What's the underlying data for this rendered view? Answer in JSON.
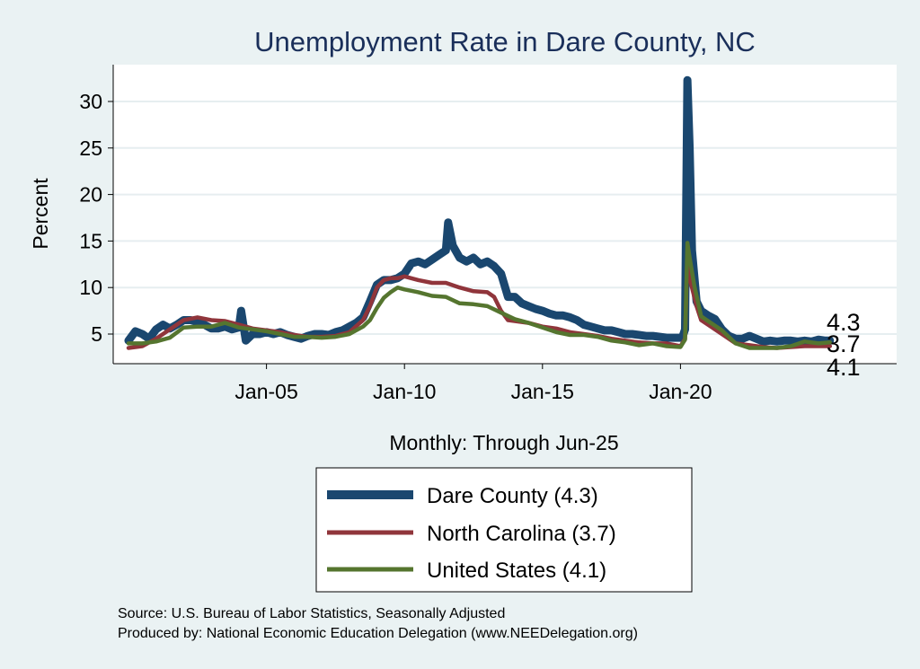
{
  "chart_data": {
    "type": "line",
    "title": "Unemployment Rate in Dare  County, NC",
    "xlabel": "Monthly: Through Jun-25",
    "ylabel": "Percent",
    "ylim": [
      2.5,
      33
    ],
    "yticks": [
      5,
      10,
      15,
      20,
      25,
      30
    ],
    "xlim": [
      "2000-01",
      "2025-12"
    ],
    "xticks": [
      {
        "x": "2005-01",
        "label": "Jan-05"
      },
      {
        "x": "2010-01",
        "label": "Jan-10"
      },
      {
        "x": "2015-01",
        "label": "Jan-15"
      },
      {
        "x": "2020-01",
        "label": "Jan-20"
      }
    ],
    "grid": true,
    "legend_position": "bottom",
    "series": [
      {
        "name": "Dare  County (4.3)",
        "color": "#1a476f",
        "end_value": "4.3",
        "points": [
          [
            "2000-01",
            4.3
          ],
          [
            "2000-04",
            5.3
          ],
          [
            "2000-07",
            5.0
          ],
          [
            "2000-10",
            4.5
          ],
          [
            "2001-01",
            5.5
          ],
          [
            "2001-04",
            6.0
          ],
          [
            "2001-07",
            5.6
          ],
          [
            "2001-10",
            6.0
          ],
          [
            "2002-01",
            6.5
          ],
          [
            "2002-04",
            6.5
          ],
          [
            "2002-07",
            6.3
          ],
          [
            "2002-10",
            6.0
          ],
          [
            "2003-01",
            5.6
          ],
          [
            "2003-04",
            5.6
          ],
          [
            "2003-07",
            5.8
          ],
          [
            "2003-10",
            5.5
          ],
          [
            "2004-01",
            5.7
          ],
          [
            "2004-02",
            7.5
          ],
          [
            "2004-04",
            4.3
          ],
          [
            "2004-07",
            5.0
          ],
          [
            "2004-10",
            5.0
          ],
          [
            "2005-01",
            5.2
          ],
          [
            "2005-04",
            5.0
          ],
          [
            "2005-07",
            5.2
          ],
          [
            "2005-10",
            4.9
          ],
          [
            "2006-01",
            4.7
          ],
          [
            "2006-04",
            4.5
          ],
          [
            "2006-07",
            4.8
          ],
          [
            "2006-10",
            5.0
          ],
          [
            "2007-01",
            5.0
          ],
          [
            "2007-04",
            4.9
          ],
          [
            "2007-07",
            5.2
          ],
          [
            "2007-10",
            5.4
          ],
          [
            "2008-01",
            5.8
          ],
          [
            "2008-04",
            6.2
          ],
          [
            "2008-07",
            6.8
          ],
          [
            "2008-10",
            8.5
          ],
          [
            "2009-01",
            10.3
          ],
          [
            "2009-04",
            10.8
          ],
          [
            "2009-07",
            10.8
          ],
          [
            "2009-10",
            11.0
          ],
          [
            "2010-01",
            11.5
          ],
          [
            "2010-04",
            12.6
          ],
          [
            "2010-07",
            12.8
          ],
          [
            "2010-10",
            12.5
          ],
          [
            "2011-01",
            13.0
          ],
          [
            "2011-04",
            13.5
          ],
          [
            "2011-07",
            14.0
          ],
          [
            "2011-08",
            17.0
          ],
          [
            "2011-10",
            14.5
          ],
          [
            "2012-01",
            13.2
          ],
          [
            "2012-04",
            12.8
          ],
          [
            "2012-07",
            13.2
          ],
          [
            "2012-10",
            12.5
          ],
          [
            "2013-01",
            12.8
          ],
          [
            "2013-04",
            12.3
          ],
          [
            "2013-07",
            11.5
          ],
          [
            "2013-10",
            9.0
          ],
          [
            "2014-01",
            9.0
          ],
          [
            "2014-04",
            8.3
          ],
          [
            "2014-07",
            8.0
          ],
          [
            "2014-10",
            7.7
          ],
          [
            "2015-01",
            7.5
          ],
          [
            "2015-04",
            7.2
          ],
          [
            "2015-07",
            7.0
          ],
          [
            "2015-10",
            7.0
          ],
          [
            "2016-01",
            6.8
          ],
          [
            "2016-04",
            6.5
          ],
          [
            "2016-07",
            6.0
          ],
          [
            "2016-10",
            5.8
          ],
          [
            "2017-01",
            5.6
          ],
          [
            "2017-04",
            5.4
          ],
          [
            "2017-07",
            5.4
          ],
          [
            "2017-10",
            5.2
          ],
          [
            "2018-01",
            5.0
          ],
          [
            "2018-04",
            5.0
          ],
          [
            "2018-07",
            4.9
          ],
          [
            "2018-10",
            4.8
          ],
          [
            "2019-01",
            4.8
          ],
          [
            "2019-04",
            4.7
          ],
          [
            "2019-07",
            4.6
          ],
          [
            "2019-10",
            4.6
          ],
          [
            "2020-01",
            4.6
          ],
          [
            "2020-02",
            4.8
          ],
          [
            "2020-03",
            5.5
          ],
          [
            "2020-04",
            32.3
          ],
          [
            "2020-05",
            25.0
          ],
          [
            "2020-06",
            14.0
          ],
          [
            "2020-08",
            8.5
          ],
          [
            "2020-10",
            7.5
          ],
          [
            "2021-01",
            7.0
          ],
          [
            "2021-04",
            6.6
          ],
          [
            "2021-07",
            5.5
          ],
          [
            "2021-10",
            4.8
          ],
          [
            "2022-01",
            4.5
          ],
          [
            "2022-04",
            4.5
          ],
          [
            "2022-07",
            4.8
          ],
          [
            "2022-10",
            4.5
          ],
          [
            "2023-01",
            4.2
          ],
          [
            "2023-04",
            4.3
          ],
          [
            "2023-07",
            4.2
          ],
          [
            "2023-10",
            4.3
          ],
          [
            "2024-01",
            4.3
          ],
          [
            "2024-04",
            4.2
          ],
          [
            "2024-07",
            4.3
          ],
          [
            "2024-10",
            4.2
          ],
          [
            "2025-01",
            4.4
          ],
          [
            "2025-04",
            4.3
          ],
          [
            "2025-06",
            4.3
          ]
        ]
      },
      {
        "name": "North Carolina (3.7)",
        "color": "#90353b",
        "end_value": "3.7",
        "points": [
          [
            "2000-01",
            3.5
          ],
          [
            "2000-07",
            3.7
          ],
          [
            "2001-01",
            4.5
          ],
          [
            "2001-07",
            5.5
          ],
          [
            "2002-01",
            6.5
          ],
          [
            "2002-07",
            6.8
          ],
          [
            "2003-01",
            6.5
          ],
          [
            "2003-07",
            6.4
          ],
          [
            "2004-01",
            6.0
          ],
          [
            "2004-07",
            5.6
          ],
          [
            "2005-01",
            5.4
          ],
          [
            "2005-07",
            5.2
          ],
          [
            "2006-01",
            4.9
          ],
          [
            "2006-07",
            4.7
          ],
          [
            "2007-01",
            4.7
          ],
          [
            "2007-07",
            4.8
          ],
          [
            "2008-01",
            5.2
          ],
          [
            "2008-07",
            6.5
          ],
          [
            "2008-10",
            8.0
          ],
          [
            "2009-01",
            10.0
          ],
          [
            "2009-04",
            10.8
          ],
          [
            "2009-07",
            11.0
          ],
          [
            "2009-10",
            11.0
          ],
          [
            "2010-01",
            11.2
          ],
          [
            "2010-07",
            10.8
          ],
          [
            "2011-01",
            10.5
          ],
          [
            "2011-07",
            10.5
          ],
          [
            "2012-01",
            10.0
          ],
          [
            "2012-07",
            9.6
          ],
          [
            "2013-01",
            9.5
          ],
          [
            "2013-04",
            9.0
          ],
          [
            "2013-07",
            7.5
          ],
          [
            "2013-10",
            6.5
          ],
          [
            "2014-07",
            6.2
          ],
          [
            "2015-01",
            5.8
          ],
          [
            "2015-07",
            5.6
          ],
          [
            "2016-01",
            5.2
          ],
          [
            "2016-07",
            5.0
          ],
          [
            "2017-01",
            4.8
          ],
          [
            "2017-07",
            4.5
          ],
          [
            "2018-01",
            4.3
          ],
          [
            "2018-07",
            4.1
          ],
          [
            "2019-01",
            4.0
          ],
          [
            "2019-07",
            4.0
          ],
          [
            "2020-01",
            3.7
          ],
          [
            "2020-03",
            4.5
          ],
          [
            "2020-04",
            13.5
          ],
          [
            "2020-05",
            11.0
          ],
          [
            "2020-08",
            8.0
          ],
          [
            "2020-10",
            6.5
          ],
          [
            "2021-01",
            6.0
          ],
          [
            "2021-07",
            5.0
          ],
          [
            "2022-01",
            4.0
          ],
          [
            "2022-07",
            3.8
          ],
          [
            "2023-01",
            3.6
          ],
          [
            "2023-07",
            3.5
          ],
          [
            "2024-01",
            3.6
          ],
          [
            "2024-07",
            3.7
          ],
          [
            "2025-01",
            3.7
          ],
          [
            "2025-06",
            3.7
          ]
        ]
      },
      {
        "name": "United States (4.1)",
        "color": "#55752f",
        "end_value": "4.1",
        "points": [
          [
            "2000-01",
            4.0
          ],
          [
            "2000-07",
            4.0
          ],
          [
            "2001-01",
            4.2
          ],
          [
            "2001-07",
            4.6
          ],
          [
            "2002-01",
            5.7
          ],
          [
            "2002-07",
            5.8
          ],
          [
            "2003-01",
            5.8
          ],
          [
            "2003-07",
            6.2
          ],
          [
            "2004-01",
            5.7
          ],
          [
            "2004-07",
            5.5
          ],
          [
            "2005-01",
            5.3
          ],
          [
            "2005-07",
            5.0
          ],
          [
            "2006-01",
            4.7
          ],
          [
            "2006-07",
            4.7
          ],
          [
            "2007-01",
            4.6
          ],
          [
            "2007-07",
            4.7
          ],
          [
            "2008-01",
            5.0
          ],
          [
            "2008-07",
            5.8
          ],
          [
            "2008-10",
            6.5
          ],
          [
            "2009-01",
            7.8
          ],
          [
            "2009-04",
            8.9
          ],
          [
            "2009-07",
            9.5
          ],
          [
            "2009-10",
            10.0
          ],
          [
            "2010-01",
            9.8
          ],
          [
            "2010-07",
            9.5
          ],
          [
            "2011-01",
            9.1
          ],
          [
            "2011-07",
            9.0
          ],
          [
            "2012-01",
            8.3
          ],
          [
            "2012-07",
            8.2
          ],
          [
            "2013-01",
            8.0
          ],
          [
            "2013-07",
            7.3
          ],
          [
            "2014-01",
            6.6
          ],
          [
            "2014-07",
            6.2
          ],
          [
            "2015-01",
            5.7
          ],
          [
            "2015-07",
            5.2
          ],
          [
            "2016-01",
            4.9
          ],
          [
            "2016-07",
            4.9
          ],
          [
            "2017-01",
            4.7
          ],
          [
            "2017-07",
            4.3
          ],
          [
            "2018-01",
            4.1
          ],
          [
            "2018-07",
            3.8
          ],
          [
            "2019-01",
            4.0
          ],
          [
            "2019-07",
            3.7
          ],
          [
            "2020-01",
            3.6
          ],
          [
            "2020-03",
            4.4
          ],
          [
            "2020-04",
            14.8
          ],
          [
            "2020-05",
            13.2
          ],
          [
            "2020-07",
            10.2
          ],
          [
            "2020-10",
            6.9
          ],
          [
            "2021-01",
            6.4
          ],
          [
            "2021-07",
            5.4
          ],
          [
            "2022-01",
            4.0
          ],
          [
            "2022-07",
            3.5
          ],
          [
            "2023-01",
            3.5
          ],
          [
            "2023-07",
            3.5
          ],
          [
            "2024-01",
            3.7
          ],
          [
            "2024-07",
            4.2
          ],
          [
            "2025-01",
            4.0
          ],
          [
            "2025-06",
            4.1
          ]
        ]
      }
    ]
  },
  "footer": {
    "source": "Source: U.S. Bureau of Labor Statistics, Seasonally Adjusted",
    "produced_by": "Produced by: National Economic Education Delegation (www.NEEDelegation.org)"
  }
}
